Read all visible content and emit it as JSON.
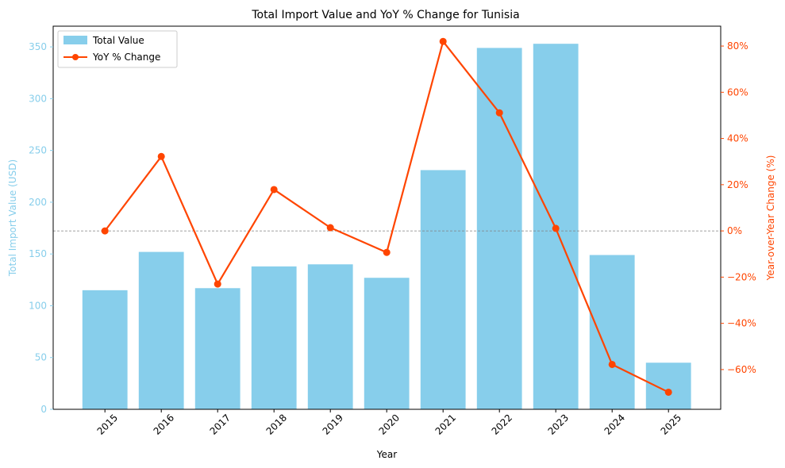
{
  "chart_data": {
    "type": "bar",
    "title": "Total Import Value and YoY % Change for Tunisia",
    "xlabel": "Year",
    "ylabel_left": "Total Import Value (USD)",
    "ylabel_right": "Year-over-Year Change (%)",
    "categories": [
      "2015",
      "2016",
      "2017",
      "2018",
      "2019",
      "2020",
      "2021",
      "2022",
      "2023",
      "2024",
      "2025"
    ],
    "series": [
      {
        "name": "Total Value",
        "type": "bar",
        "axis": "left",
        "color": "#87ceeb",
        "values": [
          115,
          152,
          117,
          138,
          140,
          127,
          231,
          349,
          353,
          149,
          45
        ]
      },
      {
        "name": "YoY % Change",
        "type": "line",
        "axis": "right",
        "color": "#ff4500",
        "values": [
          0,
          32.2,
          -23.0,
          17.9,
          1.4,
          -9.3,
          82.0,
          51.1,
          1.1,
          -57.8,
          -69.8
        ]
      }
    ],
    "ylim_left": [
      0,
      370
    ],
    "yticks_left": [
      0,
      50,
      100,
      150,
      200,
      250,
      300,
      350
    ],
    "ylim_right": [
      -77.2,
      88.6
    ],
    "yticks_right": [
      -60,
      -40,
      -20,
      0,
      20,
      40,
      60,
      80
    ],
    "yticks_right_labels": [
      "−60%",
      "−40%",
      "−20%",
      "0%",
      "20%",
      "40%",
      "60%",
      "80%"
    ],
    "reference_line": {
      "axis": "right",
      "value": 0,
      "style": "dashed",
      "color": "#808080"
    },
    "legend": {
      "position": "top-left",
      "entries": [
        "Total Value",
        "YoY % Change"
      ]
    },
    "grid": false,
    "left_axis_color": "#87ceeb",
    "right_axis_color": "#ff4500"
  }
}
